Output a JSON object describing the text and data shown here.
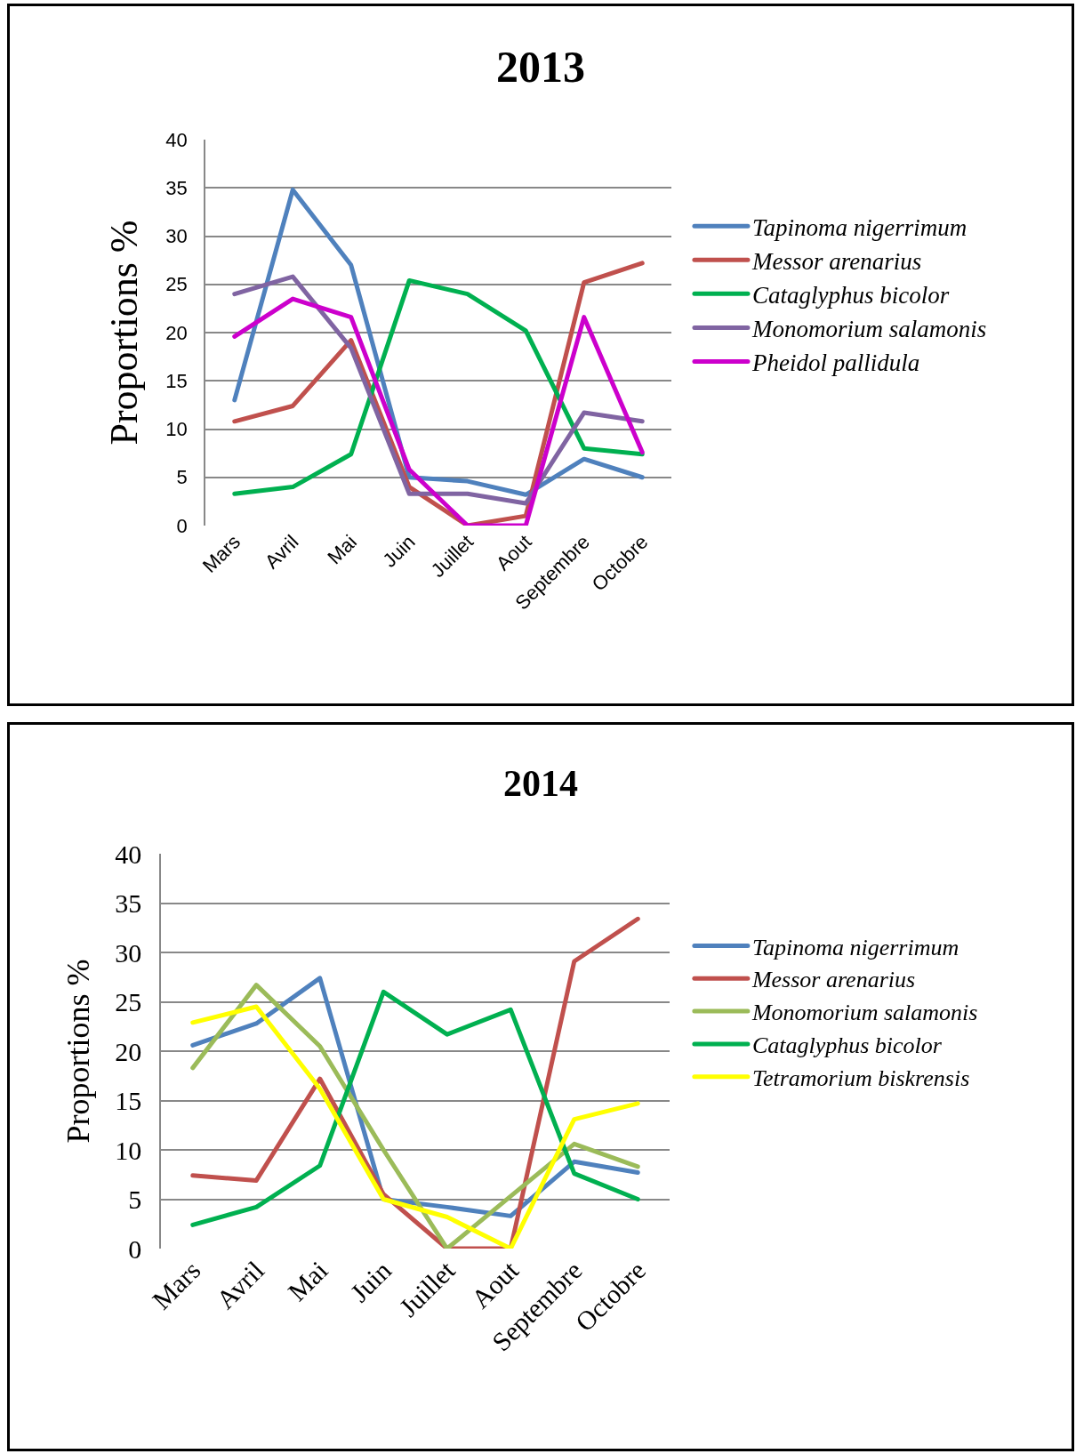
{
  "chart_data": [
    {
      "type": "line",
      "title": "2013",
      "ylabel": "Proportions %",
      "categories": [
        "Mars",
        "Avril",
        "Mai",
        "Juin",
        "Juillet",
        "Aout",
        "Septembre",
        "Octobre"
      ],
      "ylim": [
        0,
        40
      ],
      "yticks": [
        0,
        5,
        10,
        15,
        20,
        25,
        30,
        35,
        40
      ],
      "grid": "y",
      "legend": "right",
      "series": [
        {
          "name": "Tapinoma nigerrimum",
          "color": "#4f81bd",
          "values": [
            13,
            34.8,
            27,
            5,
            4.6,
            3.2,
            6.9,
            5
          ]
        },
        {
          "name": "Messor arenarius",
          "color": "#c0504d",
          "values": [
            10.8,
            12.4,
            19.2,
            4,
            0,
            1,
            25.2,
            27.2
          ]
        },
        {
          "name": "Cataglyphus bicolor",
          "color": "#00b050",
          "values": [
            3.3,
            4,
            7.4,
            25.4,
            24,
            20.2,
            8,
            7.4
          ]
        },
        {
          "name": "Monomorium salamonis",
          "color": "#8064a2",
          "values": [
            24,
            25.8,
            18.4,
            3.3,
            3.3,
            2.3,
            11.7,
            10.8
          ]
        },
        {
          "name": "Pheidol pallidula",
          "color": "#cc00cc",
          "values": [
            19.6,
            23.5,
            21.6,
            5.8,
            0,
            0,
            21.6,
            7.6
          ]
        }
      ]
    },
    {
      "type": "line",
      "title": "2014",
      "ylabel": "Proportions %",
      "categories": [
        "Mars",
        "Avril",
        "Mai",
        "Juin",
        "Juillet",
        "Aout",
        "Septembre",
        "Octobre"
      ],
      "ylim": [
        0,
        40
      ],
      "yticks": [
        0,
        5,
        10,
        15,
        20,
        25,
        30,
        35,
        40
      ],
      "grid": "y",
      "legend": "right",
      "series": [
        {
          "name": "Tapinoma nigerrimum",
          "color": "#4f81bd",
          "values": [
            20.6,
            22.8,
            27.4,
            5,
            4.2,
            3.3,
            8.8,
            7.7
          ]
        },
        {
          "name": "Messor arenarius",
          "color": "#c0504d",
          "values": [
            7.4,
            6.9,
            17.2,
            5.5,
            0,
            0,
            29.1,
            33.4
          ]
        },
        {
          "name": "Monomorium salamonis",
          "color": "#9bbb59",
          "values": [
            18.3,
            26.7,
            20.5,
            10,
            0,
            5.3,
            10.6,
            8.3
          ]
        },
        {
          "name": "Cataglyphus bicolor",
          "color": "#00b050",
          "values": [
            2.4,
            4.2,
            8.4,
            26,
            21.7,
            24.2,
            7.6,
            5
          ]
        },
        {
          "name": "Tetramorium biskrensis",
          "color": "#ffff00",
          "values": [
            22.9,
            24.5,
            16.2,
            5,
            3.2,
            0,
            13.1,
            14.7
          ]
        }
      ]
    }
  ]
}
